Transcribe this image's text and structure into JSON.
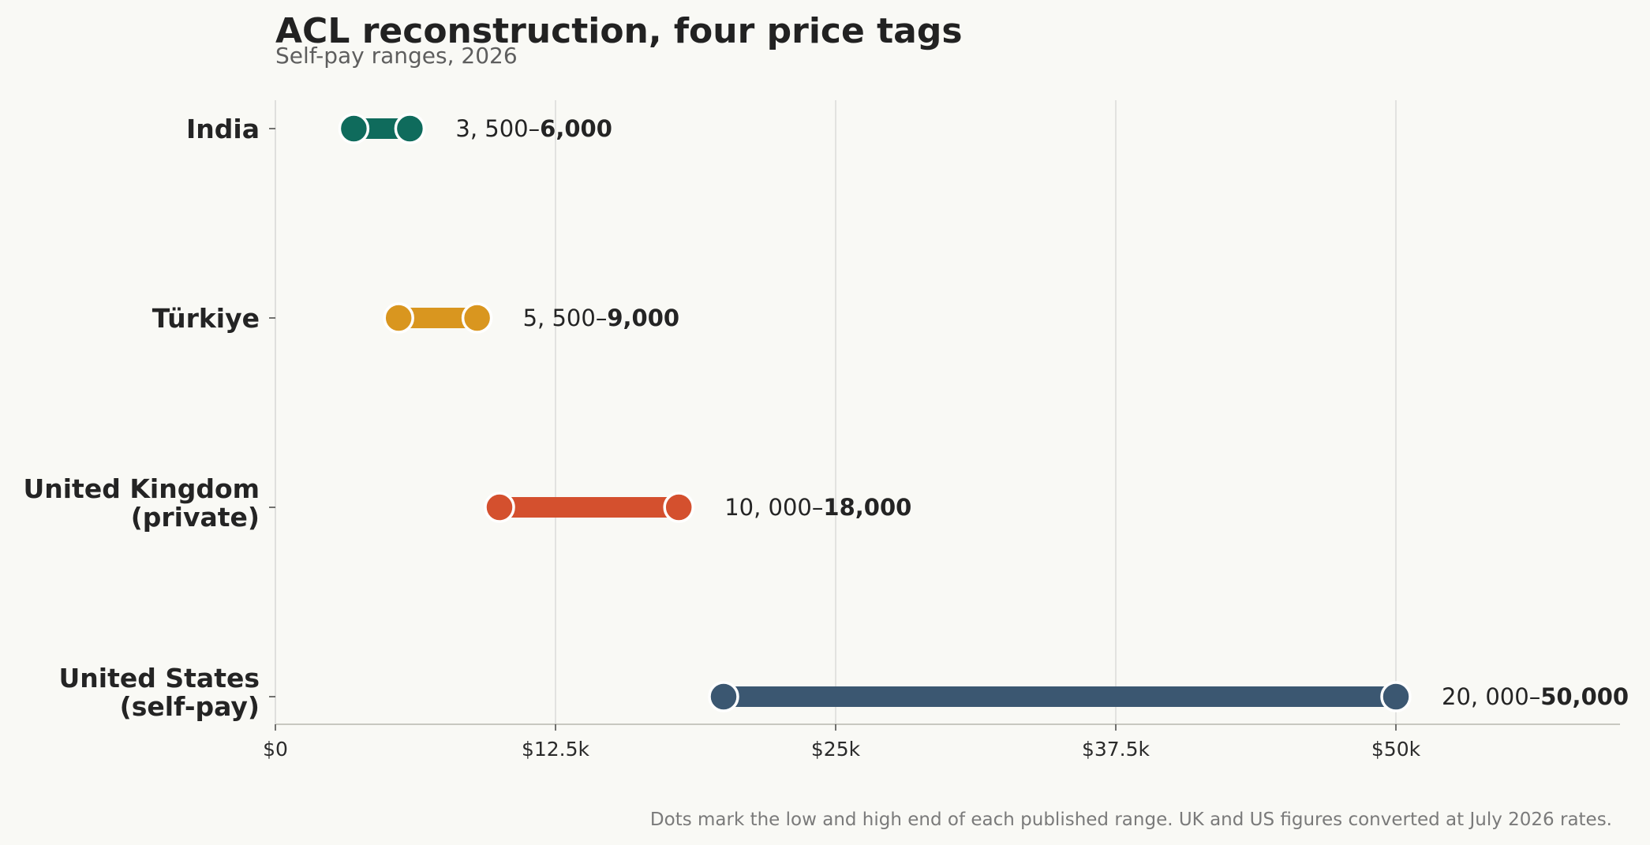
{
  "chart_data": {
    "type": "range-dot",
    "title": "ACL reconstruction, four price tags",
    "subtitle": "Self-pay ranges, 2026",
    "categories": [
      "India",
      "Türkiye",
      "United Kingdom\n(private)",
      "United States\n(self-pay)"
    ],
    "series": [
      {
        "low": 3500,
        "high": 6000,
        "color": "#0f6b5c",
        "label_low": "3, 500–",
        "label_high": "6,000"
      },
      {
        "low": 5500,
        "high": 9000,
        "color": "#d9961f",
        "label_low": "5, 500–",
        "label_high": "9,000"
      },
      {
        "low": 10000,
        "high": 18000,
        "color": "#d4502e",
        "label_low": "10, 000–",
        "label_high": "18,000"
      },
      {
        "low": 20000,
        "high": 50000,
        "color": "#3b5771",
        "label_low": "20, 000–",
        "label_high": "50,000"
      }
    ],
    "x_ticks": [
      0,
      12500,
      25000,
      37500,
      50000
    ],
    "x_tick_labels": [
      "$0",
      "$12.5k",
      "$25k",
      "$37.5k",
      "$50k"
    ],
    "xlim": [
      0,
      60000
    ],
    "grid": "vertical",
    "footnote": "Dots mark the low and high end of each published range. UK and US figures converted at July 2026 rates."
  }
}
